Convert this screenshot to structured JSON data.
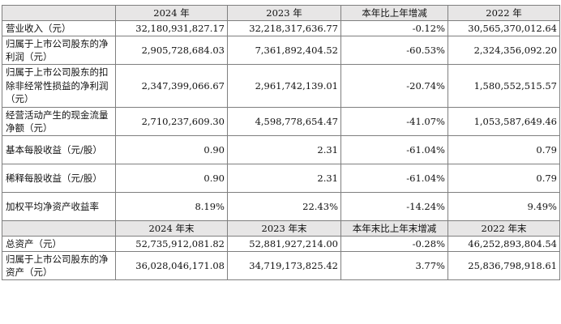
{
  "header1": [
    "",
    "2024 年",
    "2023 年",
    "本年比上年增减",
    "2022 年"
  ],
  "rows1": [
    {
      "label": "营业收入（元）",
      "v2024": "32,180,931,827.17",
      "v2023": "32,218,317,636.77",
      "change": "-0.12%",
      "v2022": "30,565,370,012.64"
    },
    {
      "label": "归属于上市公司股东的净利润（元）",
      "v2024": "2,905,728,684.03",
      "v2023": "7,361,892,404.52",
      "change": "-60.53%",
      "v2022": "2,324,356,092.20"
    },
    {
      "label": "归属于上市公司股东的扣除非经常性损益的净利润（元）",
      "v2024": "2,347,399,066.67",
      "v2023": "2,961,742,139.01",
      "change": "-20.74%",
      "v2022": "1,580,552,515.57"
    },
    {
      "label": "经营活动产生的现金流量净额（元）",
      "v2024": "2,710,237,609.30",
      "v2023": "4,598,778,654.47",
      "change": "-41.07%",
      "v2022": "1,053,587,649.46"
    },
    {
      "label": "基本每股收益（元/股）",
      "v2024": "0.90",
      "v2023": "2.31",
      "change": "-61.04%",
      "v2022": "0.79"
    },
    {
      "label": "稀释每股收益（元/股）",
      "v2024": "0.90",
      "v2023": "2.31",
      "change": "-61.04%",
      "v2022": "0.79"
    },
    {
      "label": "加权平均净资产收益率",
      "v2024": "8.19%",
      "v2023": "22.43%",
      "change": "-14.24%",
      "v2022": "9.49%"
    }
  ],
  "header2": [
    "",
    "2024 年末",
    "2023 年末",
    "本年末比上年末增减",
    "2022 年末"
  ],
  "rows2": [
    {
      "label": "总资产（元）",
      "v2024": "52,735,912,081.82",
      "v2023": "52,881,927,214.00",
      "change": "-0.28%",
      "v2022": "46,252,893,804.54"
    },
    {
      "label": "归属于上市公司股东的净资产（元）",
      "v2024": "36,028,046,171.08",
      "v2023": "34,719,173,825.42",
      "change": "3.77%",
      "v2022": "25,836,798,918.61"
    }
  ]
}
